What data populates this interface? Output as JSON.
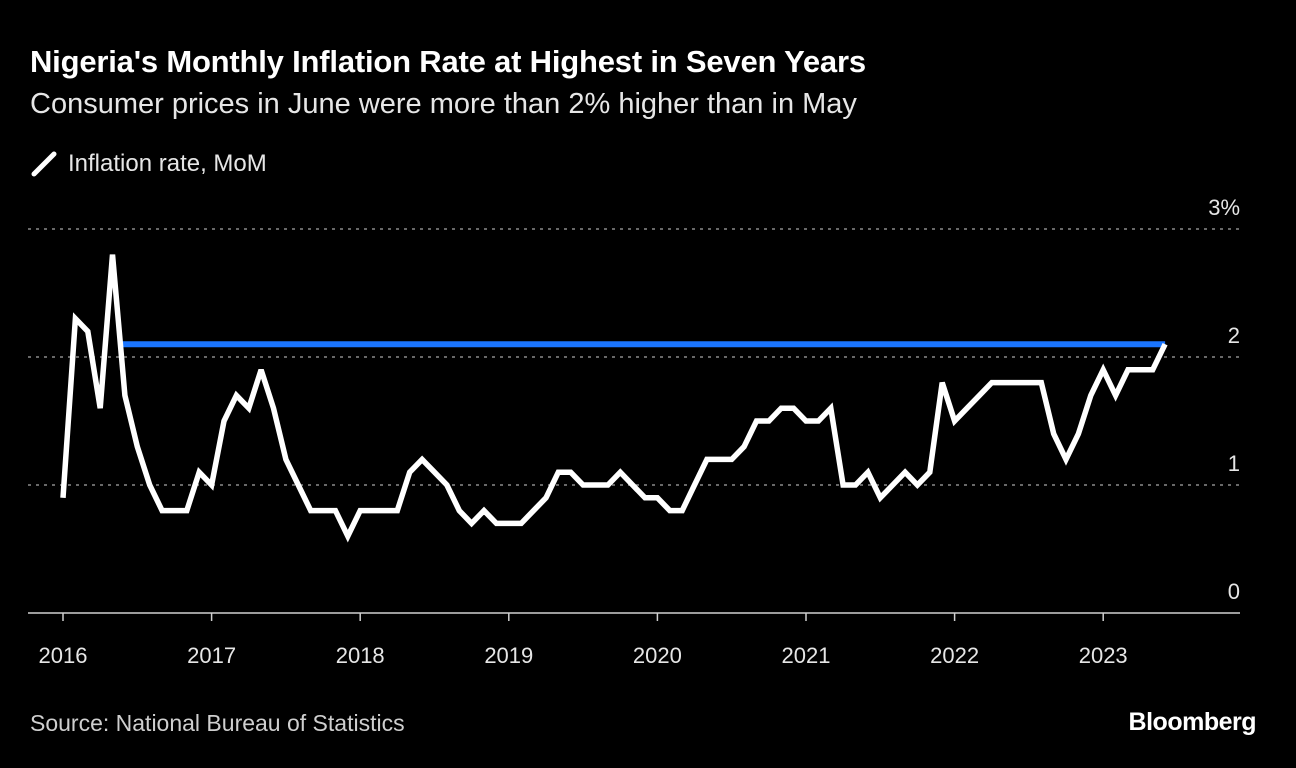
{
  "header": {
    "title": "Nigeria's Monthly Inflation Rate at Highest in Seven Years",
    "subtitle": "Consumer prices in June were more than 2% higher than in May"
  },
  "footer": {
    "source": "Source: National Bureau of Statistics",
    "logo": "Bloomberg"
  },
  "chart_data": {
    "type": "line",
    "title": "Nigeria's Monthly Inflation Rate at Highest in Seven Years",
    "subtitle": "Consumer prices in June were more than 2% higher than in May",
    "legend": {
      "placement": "top-left",
      "entries": [
        "Inflation rate, MoM"
      ]
    },
    "x_start": "2016-01",
    "x_end": "2023-06",
    "x_ticks": [
      "2016",
      "2017",
      "2018",
      "2019",
      "2020",
      "2021",
      "2022",
      "2023"
    ],
    "y_ticks": [
      "0",
      "1",
      "2",
      "3%"
    ],
    "ylim": [
      0,
      3
    ],
    "grid": "horizontal dotted",
    "series": [
      {
        "name": "Inflation rate, MoM",
        "color": "#ffffff",
        "values": [
          0.9,
          2.3,
          2.2,
          1.6,
          2.8,
          1.7,
          1.3,
          1.0,
          0.8,
          0.8,
          0.8,
          1.1,
          1.0,
          1.5,
          1.7,
          1.6,
          1.9,
          1.6,
          1.2,
          1.0,
          0.8,
          0.8,
          0.8,
          0.6,
          0.8,
          0.8,
          0.8,
          0.8,
          1.1,
          1.2,
          1.1,
          1.0,
          0.8,
          0.7,
          0.8,
          0.7,
          0.7,
          0.7,
          0.8,
          0.9,
          1.1,
          1.1,
          1.0,
          1.0,
          1.0,
          1.1,
          1.0,
          0.9,
          0.9,
          0.8,
          0.8,
          1.0,
          1.2,
          1.2,
          1.2,
          1.3,
          1.5,
          1.5,
          1.6,
          1.6,
          1.5,
          1.5,
          1.6,
          1.0,
          1.0,
          1.1,
          0.9,
          1.0,
          1.1,
          1.0,
          1.1,
          1.8,
          1.5,
          1.6,
          1.7,
          1.8,
          1.8,
          1.8,
          1.8,
          1.8,
          1.4,
          1.2,
          1.4,
          1.7,
          1.9,
          1.7,
          1.9,
          1.9,
          1.9,
          2.1
        ]
      }
    ],
    "reference_line": {
      "value": 2.1,
      "from": "2016-06",
      "to": "2023-06",
      "color": "#1a75ff"
    }
  }
}
